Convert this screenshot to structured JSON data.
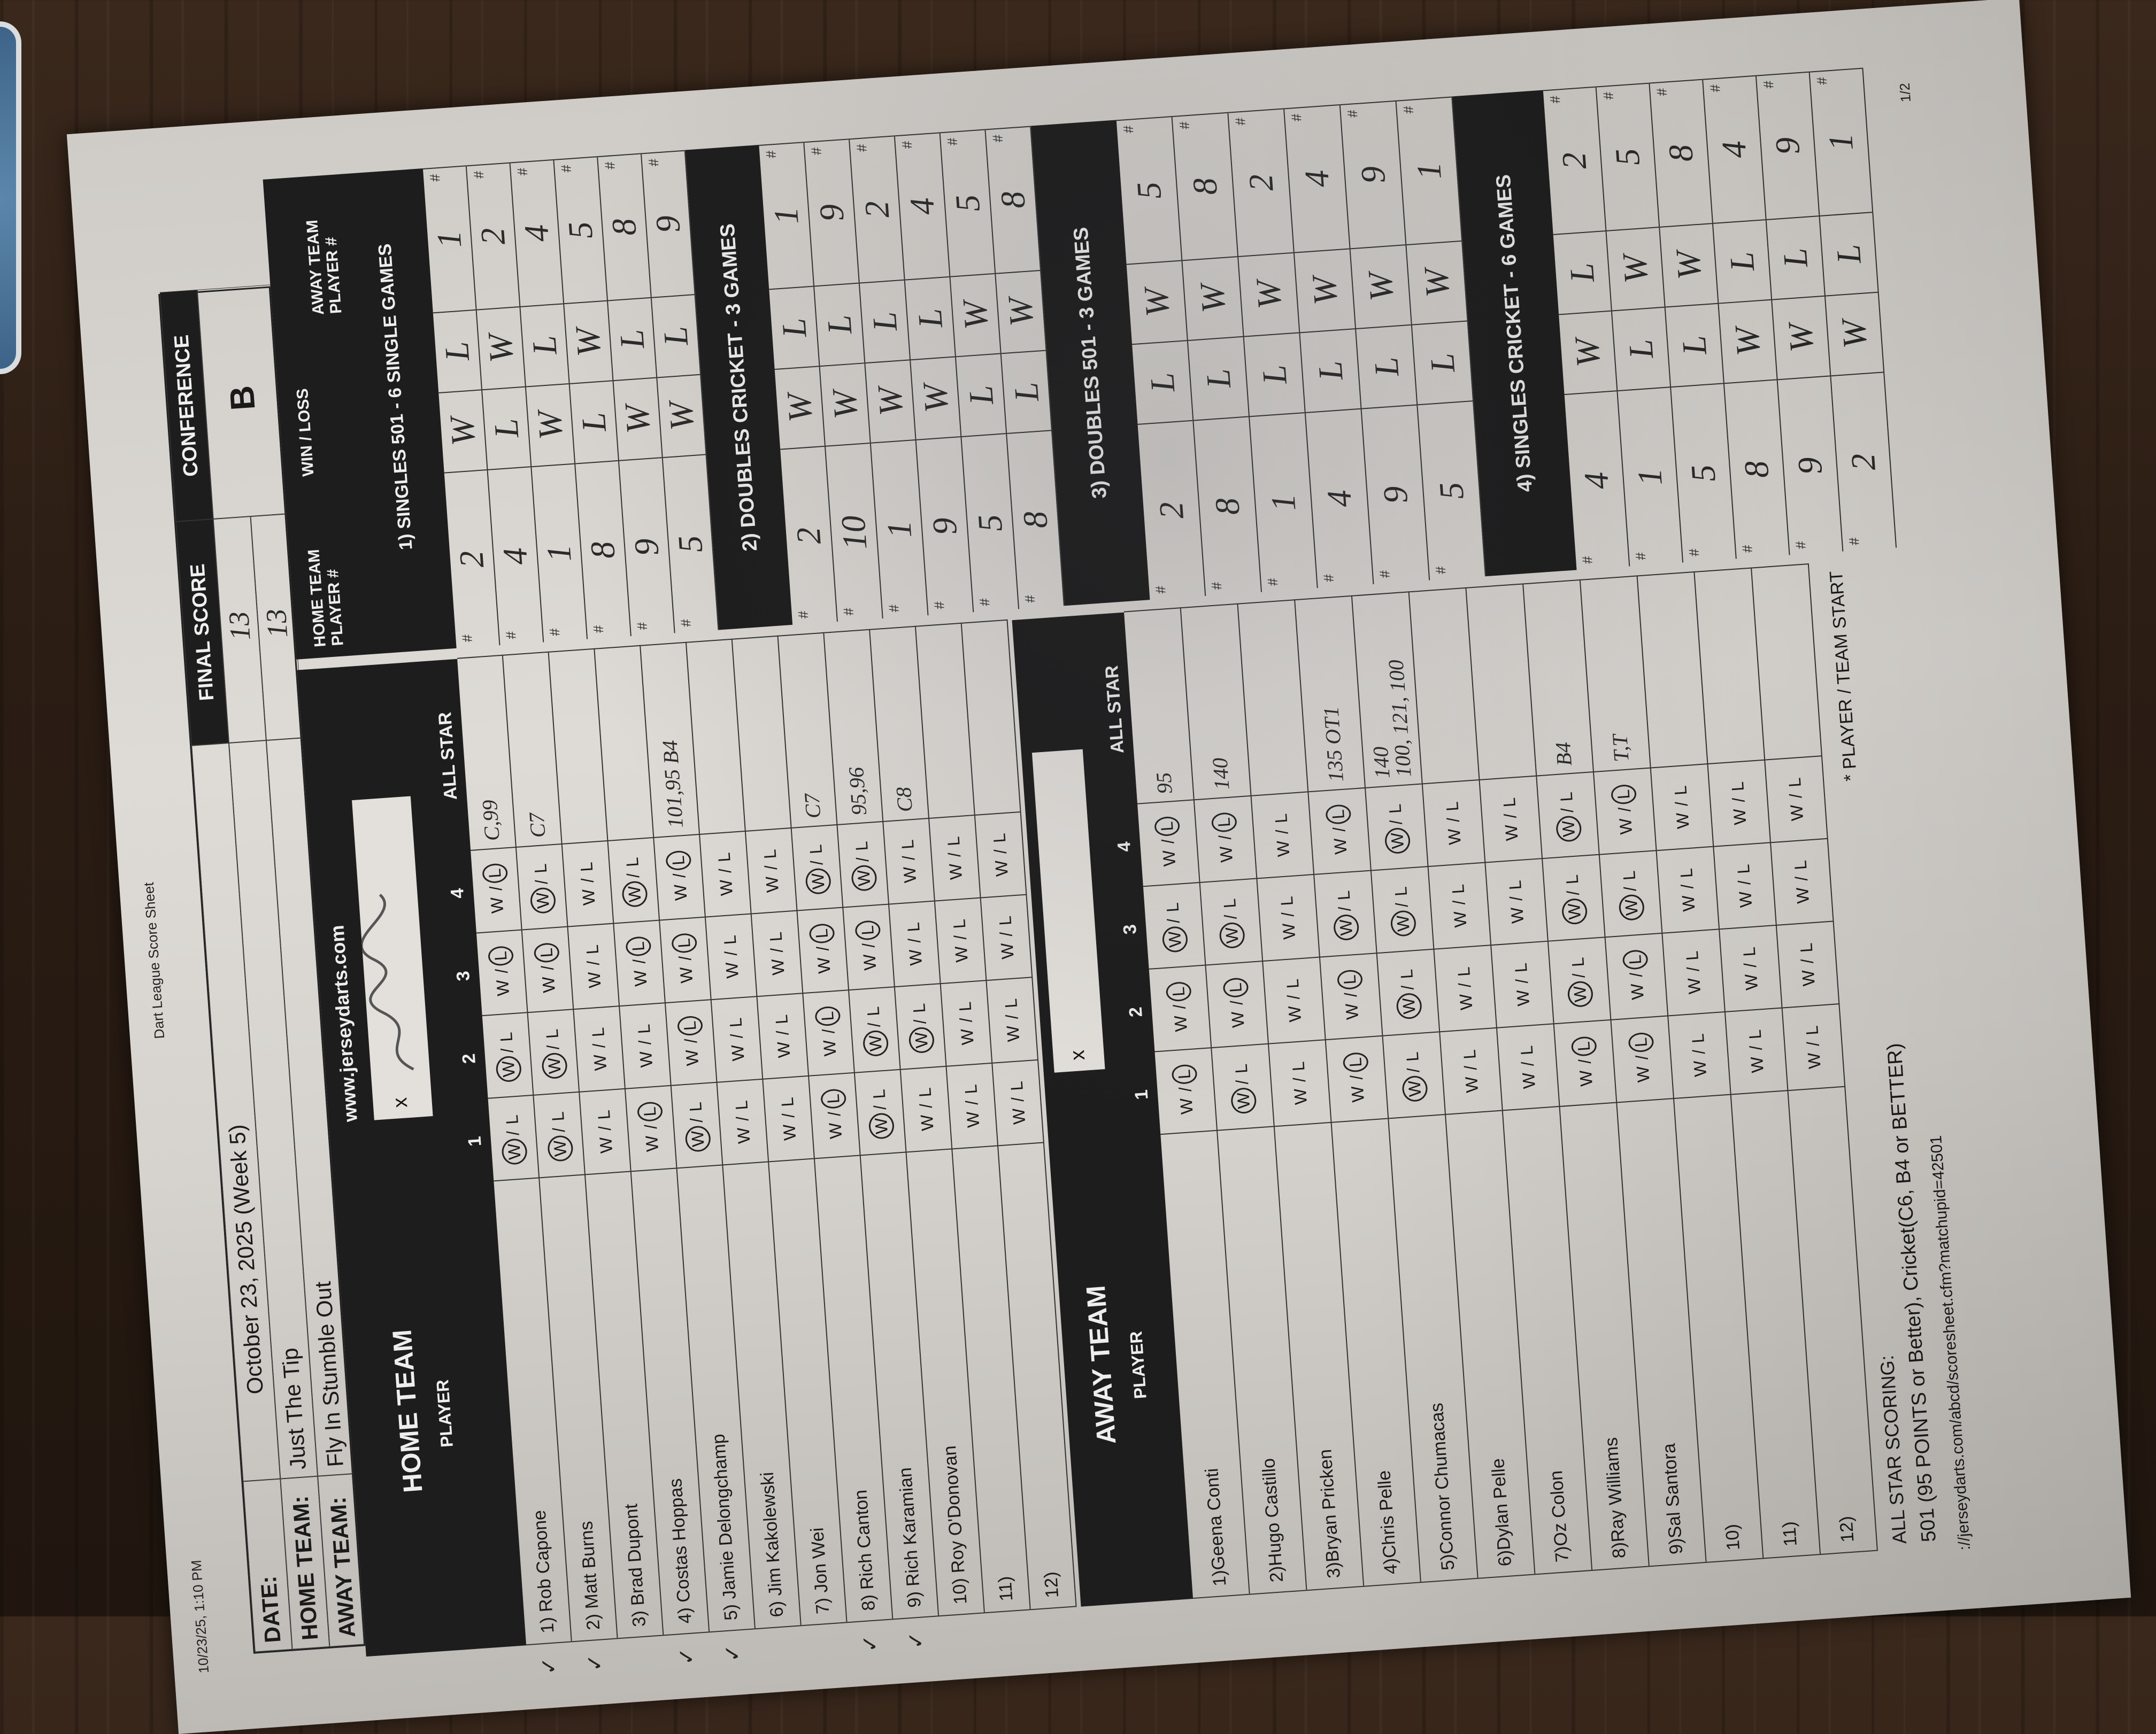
{
  "sheet": {
    "timestamp": "10/23/25, 1:10 PM",
    "title": "Dart League Score Sheet",
    "page": "1/2"
  },
  "header": {
    "date_label": "DATE:",
    "date": "October 23, 2025 (Week 5)",
    "home_label": "HOME TEAM:",
    "home_team": "Just The Tip",
    "away_label": "AWAY TEAM:",
    "away_team": "Fly In Stumble Out",
    "final_score_label": "FINAL SCORE",
    "final_score_home": "13",
    "final_score_away": "13",
    "conference_label": "CONFERENCE",
    "conference": "B"
  },
  "wl_labels": {
    "w": "W",
    "sep": "/",
    "l": "L"
  },
  "home": {
    "title": "HOME TEAM",
    "player_label": "PLAYER",
    "website": "www.jerseydarts.com",
    "signature_label": "x",
    "game_cols": [
      "1",
      "2",
      "3",
      "4"
    ],
    "allstar_label": "ALL STAR",
    "players": [
      {
        "name": "1) Rob Capone",
        "start": true,
        "results": [
          "W",
          "W",
          "L",
          "L"
        ],
        "allstar": [
          "C,99"
        ]
      },
      {
        "name": "2) Matt Burns",
        "start": true,
        "results": [
          "W",
          "W",
          "L",
          "W"
        ],
        "allstar": [
          "C7"
        ]
      },
      {
        "name": "3) Brad Dupont",
        "start": false,
        "results": [
          "",
          "",
          "",
          ""
        ],
        "allstar": []
      },
      {
        "name": "4) Costas Hoppas",
        "start": true,
        "results": [
          "L",
          "",
          "L",
          "W"
        ],
        "allstar": []
      },
      {
        "name": "5) Jamie Delongchamp",
        "start": true,
        "results": [
          "W",
          "L",
          "L",
          "L"
        ],
        "allstar": [
          "101,95 B4"
        ]
      },
      {
        "name": "6) Jim Kakolewski",
        "start": false,
        "results": [
          "",
          "",
          "",
          ""
        ],
        "allstar": []
      },
      {
        "name": "7) Jon Wei",
        "start": false,
        "results": [
          "",
          "",
          "",
          ""
        ],
        "allstar": []
      },
      {
        "name": "8) Rich Canton",
        "start": true,
        "results": [
          "L",
          "L",
          "L",
          "W"
        ],
        "allstar": [
          "C7"
        ]
      },
      {
        "name": "9) Rich Karamian",
        "start": true,
        "results": [
          "W",
          "W",
          "L",
          "W"
        ],
        "allstar": [
          "95,96"
        ]
      },
      {
        "name": "10) Roy O'Donovan",
        "start": false,
        "results": [
          "",
          "W",
          "",
          ""
        ],
        "allstar": [
          "C8"
        ]
      },
      {
        "name": "11)",
        "start": false,
        "results": [
          "",
          "",
          "",
          ""
        ],
        "allstar": []
      },
      {
        "name": "12)",
        "start": false,
        "results": [
          "",
          "",
          "",
          ""
        ],
        "allstar": []
      }
    ]
  },
  "away": {
    "title": "AWAY TEAM",
    "player_label": "PLAYER",
    "signature_label": "x",
    "game_cols": [
      "1",
      "2",
      "3",
      "4"
    ],
    "allstar_label": "ALL STAR",
    "players": [
      {
        "name": "1)Geena Conti",
        "results": [
          "L",
          "L",
          "W",
          "L"
        ],
        "allstar": [
          "95"
        ]
      },
      {
        "name": "2)Hugo Castillo",
        "results": [
          "W",
          "L",
          "W",
          "L"
        ],
        "allstar": [
          "140"
        ]
      },
      {
        "name": "3)Bryan Pricken",
        "results": [
          "",
          "",
          "",
          ""
        ],
        "allstar": []
      },
      {
        "name": "4)Chris Pelle",
        "results": [
          "L",
          "L",
          "W",
          "L"
        ],
        "allstar": [
          "135 OT1"
        ]
      },
      {
        "name": "5)Connor Chumacas",
        "results": [
          "W",
          "W",
          "W",
          "W"
        ],
        "allstar": [
          "140",
          "100, 121, 100"
        ]
      },
      {
        "name": "6)Dylan Pelle",
        "results": [
          "",
          "",
          "",
          ""
        ],
        "allstar": []
      },
      {
        "name": "7)Oz Colon",
        "results": [
          "",
          "",
          "",
          ""
        ],
        "allstar": []
      },
      {
        "name": "8)Ray Williams",
        "results": [
          "L",
          "W",
          "W",
          "W"
        ],
        "allstar": [
          "B4"
        ]
      },
      {
        "name": "9)Sal Santora",
        "results": [
          "L",
          "L",
          "W",
          "L"
        ],
        "allstar": [
          "T,T"
        ]
      },
      {
        "name": "10)",
        "results": [
          "",
          "",
          "",
          ""
        ],
        "allstar": []
      },
      {
        "name": "11)",
        "results": [
          "",
          "",
          "",
          ""
        ],
        "allstar": []
      },
      {
        "name": "12)",
        "results": [
          "",
          "",
          "",
          ""
        ],
        "allstar": []
      }
    ]
  },
  "footer": {
    "allstar_title": "ALL STAR SCORING:",
    "allstar_rules": "501 (95 POINTS or Better), Cricket(C6, B4 or BETTER)",
    "url": "://jerseydarts.com/abcd/scoresheet.cfm?matchupid=42501",
    "start_note": "* PLAYER / TEAM START"
  },
  "matrix": {
    "home_player_label": "HOME TEAM PLAYER #",
    "win_loss_label": "WIN / LOSS",
    "away_player_label": "AWAY TEAM PLAYER #",
    "hash": "#",
    "sections": [
      {
        "title": "1) SINGLES 501 - 6 SINGLE GAMES",
        "rows": [
          [
            "2",
            "W",
            "L",
            "1"
          ],
          [
            "4",
            "L",
            "W",
            "2"
          ],
          [
            "1",
            "W",
            "L",
            "4"
          ],
          [
            "8",
            "L",
            "W",
            "5"
          ],
          [
            "9",
            "W",
            "L",
            "8"
          ],
          [
            "5",
            "W",
            "L",
            "9"
          ]
        ]
      },
      {
        "title": "2) DOUBLES CRICKET - 3 GAMES",
        "rows": [
          [
            "2",
            "W",
            "L",
            "1"
          ],
          [
            "10",
            "W",
            "L",
            "9"
          ],
          [
            "1",
            "W",
            "L",
            "2"
          ],
          [
            "9",
            "W",
            "L",
            "4"
          ],
          [
            "5",
            "L",
            "W",
            "5"
          ],
          [
            "8",
            "L",
            "W",
            "8"
          ]
        ]
      },
      {
        "title": "3) DOUBLES 501 - 3 GAMES",
        "rows": [
          [
            "2",
            "L",
            "W",
            "5"
          ],
          [
            "8",
            "L",
            "W",
            "8"
          ],
          [
            "1",
            "L",
            "W",
            "2"
          ],
          [
            "4",
            "L",
            "W",
            "4"
          ],
          [
            "9",
            "L",
            "W",
            "9"
          ],
          [
            "5",
            "L",
            "W",
            "1"
          ]
        ]
      },
      {
        "title": "4) SINGLES CRICKET - 6 GAMES",
        "rows": [
          [
            "4",
            "W",
            "L",
            "2"
          ],
          [
            "1",
            "L",
            "W",
            "5"
          ],
          [
            "5",
            "L",
            "W",
            "8"
          ],
          [
            "8",
            "W",
            "L",
            "4"
          ],
          [
            "9",
            "W",
            "L",
            "9"
          ],
          [
            "2",
            "W",
            "L",
            "1"
          ]
        ]
      }
    ]
  }
}
